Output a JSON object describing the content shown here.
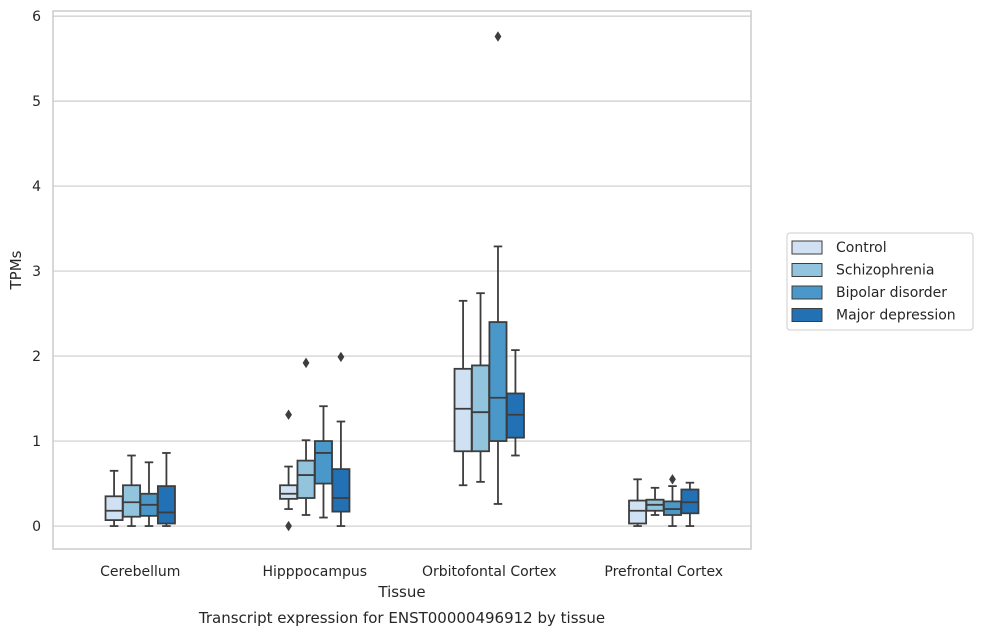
{
  "caption": "Transcript expression for ENST00000496912 by tissue",
  "chart_data": {
    "type": "box",
    "title": "",
    "xlabel": "Tissue",
    "ylabel": "TPMs",
    "ylim": [
      -0.27,
      6.06
    ],
    "yticks": [
      "0",
      "1",
      "2",
      "3",
      "4",
      "5",
      "6"
    ],
    "grid": "horizontal",
    "legend_position": "right",
    "categories": [
      "Cerebellum",
      "Hipppocampus",
      "Orbitofontal Cortex",
      "Prefrontal Cortex"
    ],
    "series": [
      {
        "name": "Control",
        "color": "#cfe1f2",
        "boxes": [
          {
            "whisker_low": 0.0,
            "q1": 0.07,
            "median": 0.18,
            "q3": 0.35,
            "whisker_high": 0.65,
            "outliers": []
          },
          {
            "whisker_low": 0.2,
            "q1": 0.32,
            "median": 0.38,
            "q3": 0.48,
            "whisker_high": 0.7,
            "outliers": [
              1.31,
              0.0
            ]
          },
          {
            "whisker_low": 0.48,
            "q1": 0.88,
            "median": 1.38,
            "q3": 1.85,
            "whisker_high": 2.65,
            "outliers": []
          },
          {
            "whisker_low": 0.0,
            "q1": 0.03,
            "median": 0.18,
            "q3": 0.3,
            "whisker_high": 0.55,
            "outliers": []
          }
        ]
      },
      {
        "name": "Schizophrenia",
        "color": "#93c4de",
        "boxes": [
          {
            "whisker_low": 0.0,
            "q1": 0.11,
            "median": 0.28,
            "q3": 0.48,
            "whisker_high": 0.83,
            "outliers": []
          },
          {
            "whisker_low": 0.13,
            "q1": 0.33,
            "median": 0.6,
            "q3": 0.77,
            "whisker_high": 1.01,
            "outliers": [
              1.92
            ]
          },
          {
            "whisker_low": 0.52,
            "q1": 0.88,
            "median": 1.34,
            "q3": 1.89,
            "whisker_high": 2.74,
            "outliers": []
          },
          {
            "whisker_low": 0.13,
            "q1": 0.18,
            "median": 0.25,
            "q3": 0.31,
            "whisker_high": 0.45,
            "outliers": []
          }
        ]
      },
      {
        "name": "Bipolar disorder",
        "color": "#4a98c9",
        "boxes": [
          {
            "whisker_low": 0.0,
            "q1": 0.12,
            "median": 0.25,
            "q3": 0.38,
            "whisker_high": 0.75,
            "outliers": []
          },
          {
            "whisker_low": 0.1,
            "q1": 0.5,
            "median": 0.86,
            "q3": 1.0,
            "whisker_high": 1.41,
            "outliers": []
          },
          {
            "whisker_low": 0.26,
            "q1": 1.0,
            "median": 1.51,
            "q3": 2.4,
            "whisker_high": 3.29,
            "outliers": [
              5.76
            ]
          },
          {
            "whisker_low": 0.0,
            "q1": 0.13,
            "median": 0.2,
            "q3": 0.29,
            "whisker_high": 0.47,
            "outliers": [
              0.55
            ]
          }
        ]
      },
      {
        "name": "Major depression",
        "color": "#2271b5",
        "boxes": [
          {
            "whisker_low": 0.0,
            "q1": 0.03,
            "median": 0.16,
            "q3": 0.47,
            "whisker_high": 0.86,
            "outliers": []
          },
          {
            "whisker_low": 0.0,
            "q1": 0.17,
            "median": 0.33,
            "q3": 0.67,
            "whisker_high": 1.23,
            "outliers": [
              1.99
            ]
          },
          {
            "whisker_low": 0.83,
            "q1": 1.04,
            "median": 1.31,
            "q3": 1.56,
            "whisker_high": 2.07,
            "outliers": []
          },
          {
            "whisker_low": 0.0,
            "q1": 0.15,
            "median": 0.28,
            "q3": 0.43,
            "whisker_high": 0.51,
            "outliers": []
          }
        ]
      }
    ]
  }
}
